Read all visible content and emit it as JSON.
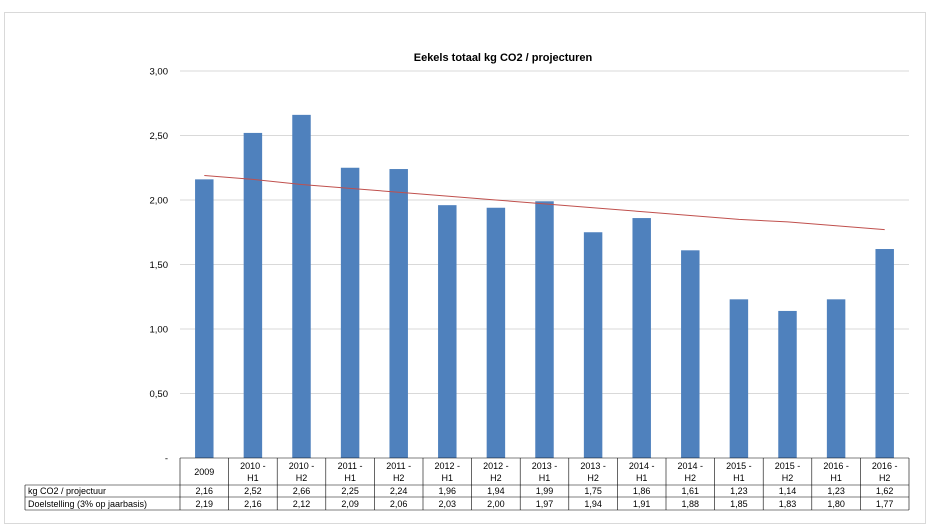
{
  "chart_data": {
    "type": "bar",
    "title": "Eekels totaal  kg CO2 / projecturen",
    "xlabel": "",
    "ylabel": "",
    "ylim": [
      0,
      3
    ],
    "yticks": [
      "-",
      "0,50",
      "1,00",
      "1,50",
      "2,00",
      "2,50",
      "3,00"
    ],
    "ytick_values": [
      0,
      0.5,
      1,
      1.5,
      2,
      2.5,
      3
    ],
    "grid": true,
    "categories": [
      [
        "2009",
        ""
      ],
      [
        "2010 -",
        "H1"
      ],
      [
        "2010 -",
        "H2"
      ],
      [
        "2011 -",
        "H1"
      ],
      [
        "2011 -",
        "H2"
      ],
      [
        "2012 -",
        "H1"
      ],
      [
        "2012 -",
        "H2"
      ],
      [
        "2013 -",
        "H1"
      ],
      [
        "2013 -",
        "H2"
      ],
      [
        "2014 -",
        "H1"
      ],
      [
        "2014 -",
        "H2"
      ],
      [
        "2015 -",
        "H1"
      ],
      [
        "2015 -",
        "H2"
      ],
      [
        "2016 -",
        "H1"
      ],
      [
        "2016 -",
        "H2"
      ]
    ],
    "series": [
      {
        "name": "kg CO2 / projectuur",
        "type": "bar",
        "color": "#4f81bd",
        "values": [
          2.16,
          2.52,
          2.66,
          2.25,
          2.24,
          1.96,
          1.94,
          1.99,
          1.75,
          1.86,
          1.61,
          1.23,
          1.14,
          1.23,
          1.62
        ],
        "labels": [
          "2,16",
          "2,52",
          "2,66",
          "2,25",
          "2,24",
          "1,96",
          "1,94",
          "1,99",
          "1,75",
          "1,86",
          "1,61",
          "1,23",
          "1,14",
          "1,23",
          "1,62"
        ]
      },
      {
        "name": "Doelstelling (3% op jaarbasis)",
        "type": "line",
        "color": "#c0504d",
        "values": [
          2.19,
          2.16,
          2.12,
          2.09,
          2.06,
          2.03,
          2.0,
          1.97,
          1.94,
          1.91,
          1.88,
          1.85,
          1.83,
          1.8,
          1.77
        ],
        "labels": [
          "2,19",
          "2,16",
          "2,12",
          "2,09",
          "2,06",
          "2,03",
          "2,00",
          "1,97",
          "1,94",
          "1,91",
          "1,88",
          "1,85",
          "1,83",
          "1,80",
          "1,77"
        ]
      }
    ]
  }
}
